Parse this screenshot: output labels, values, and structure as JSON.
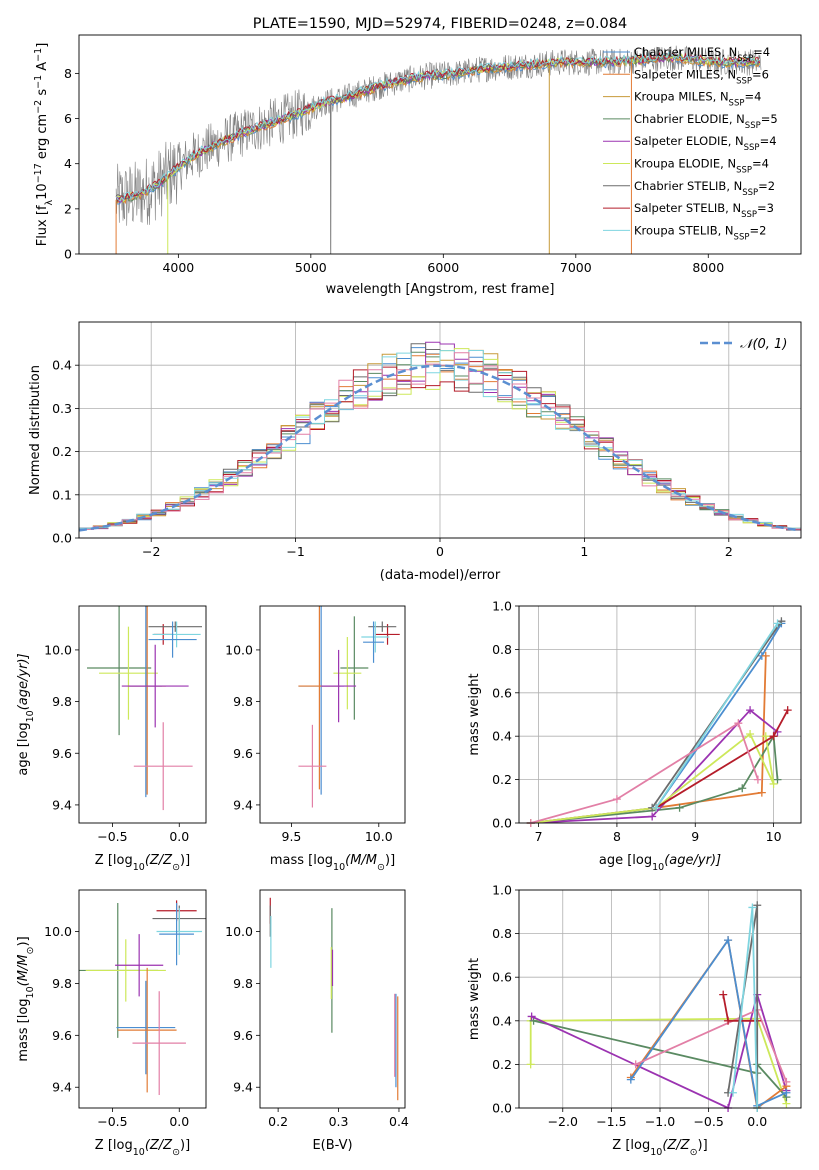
{
  "colors": {
    "chabrier_miles": "#4c8ed0",
    "salpeter_miles": "#e27b35",
    "kroupa_miles": "#c79a3a",
    "chabrier_elodie": "#5a8a62",
    "salpeter_elodie": "#9b33b1",
    "kroupa_elodie": "#cde85a",
    "chabrier_stelib": "#6b6b6b",
    "salpeter_stelib": "#b51d2a",
    "kroupa_stelib": "#7fd5e0",
    "pink": "#e27fa6",
    "gaussian": "#5b8fd1",
    "data": "#7f7f7f",
    "grid": "#b0b0b0"
  },
  "chart_data": [
    {
      "id": "spectrum",
      "type": "line",
      "title": "PLATE=1590, MJD=52974, FIBERID=0248, z=0.084",
      "xlabel": "wavelength [Angstrom, rest frame]",
      "ylabel_main": "Flux [f",
      "ylabel_sub": "λ",
      "ylabel_rest": "10",
      "ylabel_exp1": "−17",
      "ylabel_mid": " erg cm",
      "ylabel_exp2": "−2",
      "ylabel_s": " s",
      "ylabel_exp3": "−1",
      "ylabel_a": " A",
      "ylabel_exp4": "−1",
      "ylabel_end": "]",
      "xlim": [
        3250,
        8700
      ],
      "ylim": [
        0,
        9.7
      ],
      "xticks": [
        "4000",
        "5000",
        "6000",
        "7000",
        "8000"
      ],
      "xtick_values": [
        4000,
        5000,
        6000,
        7000,
        8000
      ],
      "yticks": [
        "0",
        "2",
        "4",
        "6",
        "8"
      ],
      "ytick_values": [
        0,
        2,
        4,
        6,
        8
      ],
      "grid": false,
      "legend_location": "right",
      "legend": [
        {
          "label": "Chabrier MILES, N",
          "sub": "SSP",
          "tail": "=4",
          "color_key": "chabrier_miles"
        },
        {
          "label": "Salpeter MILES, N",
          "sub": "SSP",
          "tail": "=6",
          "color_key": "salpeter_miles"
        },
        {
          "label": "Kroupa MILES, N",
          "sub": "SSP",
          "tail": "=4",
          "color_key": "kroupa_miles"
        },
        {
          "label": "Chabrier ELODIE, N",
          "sub": "SSP",
          "tail": "=5",
          "color_key": "chabrier_elodie"
        },
        {
          "label": "Salpeter ELODIE, N",
          "sub": "SSP",
          "tail": "=4",
          "color_key": "salpeter_elodie"
        },
        {
          "label": "Kroupa ELODIE, N",
          "sub": "SSP",
          "tail": "=4",
          "color_key": "kroupa_elodie"
        },
        {
          "label": "Chabrier STELIB, N",
          "sub": "SSP",
          "tail": "=2",
          "color_key": "chabrier_stelib"
        },
        {
          "label": "Salpeter STELIB, N",
          "sub": "SSP",
          "tail": "=3",
          "color_key": "salpeter_stelib"
        },
        {
          "label": "Kroupa STELIB, N",
          "sub": "SSP",
          "tail": "=2",
          "color_key": "kroupa_stelib"
        }
      ],
      "continuum": [
        [
          3530,
          2.4
        ],
        [
          3700,
          2.6
        ],
        [
          3850,
          3.1
        ],
        [
          3950,
          3.6
        ],
        [
          4100,
          4.3
        ],
        [
          4300,
          4.9
        ],
        [
          4500,
          5.4
        ],
        [
          4700,
          5.8
        ],
        [
          4900,
          6.2
        ],
        [
          5100,
          6.7
        ],
        [
          5300,
          7.0
        ],
        [
          5500,
          7.4
        ],
        [
          5700,
          7.7
        ],
        [
          5900,
          7.9
        ],
        [
          6100,
          8.0
        ],
        [
          6300,
          8.2
        ],
        [
          6500,
          8.3
        ],
        [
          6700,
          8.4
        ],
        [
          6900,
          8.5
        ],
        [
          7100,
          8.5
        ],
        [
          7300,
          8.5
        ],
        [
          7500,
          8.6
        ],
        [
          7700,
          8.7
        ],
        [
          7900,
          8.6
        ],
        [
          8100,
          8.5
        ],
        [
          8300,
          8.5
        ]
      ],
      "data_range": [
        3530,
        8400
      ],
      "dropouts": [
        [
          3530,
          "salpeter_miles"
        ],
        [
          3920,
          "kroupa_elodie"
        ],
        [
          5150,
          "data"
        ],
        [
          6800,
          "kroupa_miles"
        ],
        [
          7420,
          "salpeter_miles"
        ]
      ]
    },
    {
      "id": "residuals",
      "type": "bar",
      "xlabel": "(data-model)/error",
      "ylabel": "Normed distribution",
      "xlim": [
        -2.5,
        2.5
      ],
      "ylim": [
        0,
        0.5
      ],
      "xticks": [
        "−2",
        "−1",
        "0",
        "1",
        "2"
      ],
      "xtick_values": [
        -2,
        -1,
        0,
        1,
        2
      ],
      "yticks": [
        "0.0",
        "0.1",
        "0.2",
        "0.3",
        "0.4"
      ],
      "ytick_values": [
        0,
        0.1,
        0.2,
        0.3,
        0.4
      ],
      "grid": true,
      "bin_width": 0.1,
      "legend_location": "upper right",
      "legend_label": "𝒩(0, 1)",
      "gaussian_sigma": 1.0
    },
    {
      "id": "z_vs_age",
      "type": "scatter",
      "xlabel": "Z [log",
      "xlabel_sub": "10",
      "xlabel_rest": "(Z/Z",
      "xlabel_sun": "⊙",
      "xlabel_end": ")]",
      "ylabel": "age  [log",
      "ylabel_sub": "10",
      "ylabel_rest": "(age/yr)]",
      "xlim": [
        -0.75,
        0.2
      ],
      "ylim": [
        9.33,
        10.17
      ],
      "xticks": [
        "−0.5",
        "0.0"
      ],
      "xtick_values": [
        -0.5,
        0.0
      ],
      "yticks": [
        "9.4",
        "9.6",
        "9.8",
        "10.0"
      ],
      "ytick_values": [
        9.4,
        9.6,
        9.8,
        10.0
      ],
      "points": [
        {
          "x": -0.12,
          "y": 10.06,
          "xerr": 0.07,
          "yerr": 0.04,
          "c": "salpeter_stelib"
        },
        {
          "x": -0.03,
          "y": 10.09,
          "xerr": 0.2,
          "yerr": 0.02,
          "c": "chabrier_stelib"
        },
        {
          "x": -0.02,
          "y": 10.06,
          "xerr": 0.18,
          "yerr": 0.05,
          "c": "kroupa_stelib"
        },
        {
          "x": -0.05,
          "y": 10.04,
          "xerr": 0.18,
          "yerr": 0.07,
          "c": "chabrier_miles"
        },
        {
          "x": -0.45,
          "y": 9.93,
          "xerr": 0.24,
          "yerr": 0.26,
          "c": "chabrier_elodie"
        },
        {
          "x": -0.38,
          "y": 9.91,
          "xerr": 0.22,
          "yerr": 0.18,
          "c": "kroupa_elodie"
        },
        {
          "x": -0.25,
          "y": 9.86,
          "xerr": 0.12,
          "yerr": 0.43,
          "c": "chabrier_miles"
        },
        {
          "x": -0.24,
          "y": 9.86,
          "xerr": 0.14,
          "yerr": 0.42,
          "c": "salpeter_miles"
        },
        {
          "x": -0.18,
          "y": 9.86,
          "xerr": 0.25,
          "yerr": 0.16,
          "c": "salpeter_elodie"
        },
        {
          "x": -0.12,
          "y": 9.55,
          "xerr": 0.22,
          "yerr": 0.17,
          "c": "pink"
        }
      ]
    },
    {
      "id": "mass_vs_age",
      "type": "scatter",
      "xlabel": "mass [log",
      "xlabel_sub": "10",
      "xlabel_rest": "(M/M",
      "xlabel_sun": "⊙",
      "xlabel_end": ")]",
      "xlim": [
        9.32,
        10.15
      ],
      "ylim": [
        9.33,
        10.17
      ],
      "xticks": [
        "9.5",
        "10.0"
      ],
      "xtick_values": [
        9.5,
        10.0
      ],
      "yticks": [
        "9.4",
        "9.6",
        "9.8",
        "10.0"
      ],
      "ytick_values": [
        9.4,
        9.6,
        9.8,
        10.0
      ],
      "points": [
        {
          "x": 10.05,
          "y": 10.06,
          "xerr": 0.07,
          "yerr": 0.04,
          "c": "salpeter_stelib"
        },
        {
          "x": 10.02,
          "y": 10.09,
          "xerr": 0.08,
          "yerr": 0.02,
          "c": "chabrier_stelib"
        },
        {
          "x": 9.98,
          "y": 10.05,
          "xerr": 0.08,
          "yerr": 0.06,
          "c": "kroupa_stelib"
        },
        {
          "x": 9.97,
          "y": 10.03,
          "xerr": 0.06,
          "yerr": 0.08,
          "c": "chabrier_miles"
        },
        {
          "x": 9.86,
          "y": 9.93,
          "xerr": 0.08,
          "yerr": 0.2,
          "c": "chabrier_elodie"
        },
        {
          "x": 9.82,
          "y": 9.91,
          "xerr": 0.08,
          "yerr": 0.14,
          "c": "kroupa_elodie"
        },
        {
          "x": 9.67,
          "y": 9.86,
          "xerr": 0.13,
          "yerr": 0.42,
          "c": "chabrier_miles"
        },
        {
          "x": 9.66,
          "y": 9.86,
          "xerr": 0.12,
          "yerr": 0.4,
          "c": "salpeter_miles"
        },
        {
          "x": 9.77,
          "y": 9.86,
          "xerr": 0.1,
          "yerr": 0.14,
          "c": "salpeter_elodie"
        },
        {
          "x": 9.62,
          "y": 9.55,
          "xerr": 0.08,
          "yerr": 0.16,
          "c": "pink"
        }
      ]
    },
    {
      "id": "weight_vs_age",
      "type": "line",
      "xlabel": "age  [log",
      "xlabel_sub": "10",
      "xlabel_rest": "(age/yr)]",
      "ylabel": "mass weight",
      "xlim": [
        6.75,
        10.35
      ],
      "ylim": [
        0,
        1
      ],
      "xticks": [
        "7",
        "8",
        "9",
        "10"
      ],
      "xtick_values": [
        7,
        8,
        9,
        10
      ],
      "yticks": [
        "0.0",
        "0.2",
        "0.4",
        "0.6",
        "0.8",
        "1.0"
      ],
      "ytick_values": [
        0,
        0.2,
        0.4,
        0.6,
        0.8,
        1.0
      ],
      "grid": true,
      "series": [
        {
          "c": "chabrier_miles",
          "x": [
            6.9,
            8.5,
            9.85,
            10.1
          ],
          "y": [
            0.0,
            0.07,
            0.77,
            0.92
          ]
        },
        {
          "c": "salpeter_miles",
          "x": [
            6.9,
            8.5,
            9.85,
            9.9
          ],
          "y": [
            0.0,
            0.07,
            0.14,
            0.77
          ]
        },
        {
          "c": "chabrier_elodie",
          "x": [
            6.9,
            8.8,
            9.6,
            10.0,
            10.05
          ],
          "y": [
            0.0,
            0.07,
            0.16,
            0.4,
            0.2
          ]
        },
        {
          "c": "salpeter_elodie",
          "x": [
            6.9,
            8.45,
            9.7,
            10.05
          ],
          "y": [
            0.0,
            0.03,
            0.52,
            0.42
          ]
        },
        {
          "c": "kroupa_elodie",
          "x": [
            6.9,
            8.5,
            9.7,
            10.0,
            9.9
          ],
          "y": [
            0.0,
            0.07,
            0.41,
            0.18,
            0.4
          ]
        },
        {
          "c": "chabrier_stelib",
          "x": [
            8.45,
            10.1
          ],
          "y": [
            0.07,
            0.93
          ]
        },
        {
          "c": "salpeter_stelib",
          "x": [
            8.5,
            10.0,
            10.18
          ],
          "y": [
            0.07,
            0.4,
            0.52
          ]
        },
        {
          "c": "kroupa_stelib",
          "x": [
            8.5,
            10.05
          ],
          "y": [
            0.07,
            0.92
          ]
        },
        {
          "c": "pink",
          "x": [
            6.9,
            8.0,
            9.55,
            9.8
          ],
          "y": [
            0.0,
            0.11,
            0.46,
            0.2
          ]
        }
      ]
    },
    {
      "id": "z_vs_mass",
      "type": "scatter",
      "xlabel": "Z [log",
      "xlabel_sub": "10",
      "xlabel_rest": "(Z/Z",
      "xlabel_sun": "⊙",
      "xlabel_end": ")]",
      "ylabel": "mass [log",
      "ylabel_sub": "10",
      "ylabel_rest": "(M/M",
      "ylabel_sun": "⊙",
      "ylabel_end": ")]",
      "xlim": [
        -0.75,
        0.2
      ],
      "ylim": [
        9.32,
        10.16
      ],
      "xticks": [
        "−0.5",
        "0.0"
      ],
      "xtick_values": [
        -0.5,
        0.0
      ],
      "yticks": [
        "9.4",
        "9.6",
        "9.8",
        "10.0"
      ],
      "ytick_values": [
        9.4,
        9.6,
        9.8,
        10.0
      ],
      "points": [
        {
          "x": -0.02,
          "y": 10.08,
          "xerr": 0.15,
          "yerr": 0.04,
          "c": "salpeter_stelib"
        },
        {
          "x": 0.0,
          "y": 10.05,
          "xerr": 0.2,
          "yerr": 0.05,
          "c": "chabrier_stelib"
        },
        {
          "x": 0.0,
          "y": 10.0,
          "xerr": 0.17,
          "yerr": 0.09,
          "c": "kroupa_stelib"
        },
        {
          "x": -0.02,
          "y": 9.99,
          "xerr": 0.13,
          "yerr": 0.12,
          "c": "chabrier_miles"
        },
        {
          "x": -0.46,
          "y": 9.85,
          "xerr": 0.3,
          "yerr": 0.26,
          "c": "chabrier_elodie"
        },
        {
          "x": -0.4,
          "y": 9.85,
          "xerr": 0.3,
          "yerr": 0.12,
          "c": "kroupa_elodie"
        },
        {
          "x": -0.25,
          "y": 9.63,
          "xerr": 0.22,
          "yerr": 0.18,
          "c": "chabrier_miles"
        },
        {
          "x": -0.24,
          "y": 9.62,
          "xerr": 0.22,
          "yerr": 0.24,
          "c": "salpeter_miles"
        },
        {
          "x": -0.3,
          "y": 9.87,
          "xerr": 0.18,
          "yerr": 0.12,
          "c": "salpeter_elodie"
        },
        {
          "x": -0.15,
          "y": 9.57,
          "xerr": 0.2,
          "yerr": 0.2,
          "c": "pink"
        }
      ]
    },
    {
      "id": "ebv_vs_mass",
      "type": "scatter",
      "xlabel": "E(B-V)",
      "xlim": [
        0.17,
        0.41
      ],
      "ylim": [
        9.32,
        10.16
      ],
      "xticks": [
        "0.2",
        "0.3",
        "0.4"
      ],
      "xtick_values": [
        0.2,
        0.3,
        0.4
      ],
      "yticks": [
        "9.4",
        "9.6",
        "9.8",
        "10.0"
      ],
      "ytick_values": [
        9.4,
        9.6,
        9.8,
        10.0
      ],
      "points": [
        {
          "x": 0.187,
          "y": 10.08,
          "yerr": 0.05,
          "c": "salpeter_stelib"
        },
        {
          "x": 0.187,
          "y": 10.04,
          "yerr": 0.06,
          "c": "chabrier_stelib"
        },
        {
          "x": 0.188,
          "y": 9.96,
          "yerr": 0.1,
          "c": "kroupa_stelib"
        },
        {
          "x": 0.289,
          "y": 9.85,
          "yerr": 0.24,
          "c": "chabrier_elodie"
        },
        {
          "x": 0.288,
          "y": 9.84,
          "yerr": 0.1,
          "c": "kroupa_elodie"
        },
        {
          "x": 0.29,
          "y": 9.86,
          "yerr": 0.07,
          "c": "salpeter_elodie"
        },
        {
          "x": 0.393,
          "y": 9.6,
          "yerr": 0.16,
          "c": "pink"
        },
        {
          "x": 0.398,
          "y": 9.55,
          "yerr": 0.2,
          "c": "salpeter_miles"
        },
        {
          "x": 0.395,
          "y": 9.58,
          "yerr": 0.18,
          "c": "chabrier_miles"
        }
      ]
    },
    {
      "id": "weight_vs_z",
      "type": "line",
      "xlabel": "Z [log",
      "xlabel_sub": "10",
      "xlabel_rest": "(Z/Z",
      "xlabel_sun": "⊙",
      "xlabel_end": ")]",
      "ylabel": "mass weight",
      "xlim": [
        -2.45,
        0.45
      ],
      "ylim": [
        0,
        1
      ],
      "xticks": [
        "−2.0",
        "−1.5",
        "−1.0",
        "−0.5",
        "0.0"
      ],
      "xtick_values": [
        -2.0,
        -1.5,
        -1.0,
        -0.5,
        0.0
      ],
      "yticks": [
        "0.0",
        "0.2",
        "0.4",
        "0.6",
        "0.8",
        "1.0"
      ],
      "ytick_values": [
        0,
        0.2,
        0.4,
        0.6,
        0.8,
        1.0
      ],
      "grid": true,
      "series": [
        {
          "c": "kroupa_elodie",
          "x": [
            -2.33,
            -2.33,
            0.0,
            0.3
          ],
          "y": [
            0.2,
            0.4,
            0.41,
            0.02
          ]
        },
        {
          "c": "chabrier_elodie",
          "x": [
            -2.3,
            0.0,
            0.0,
            0.3
          ],
          "y": [
            0.4,
            0.16,
            0.2,
            0.05
          ]
        },
        {
          "c": "salpeter_elodie",
          "x": [
            -2.32,
            -0.3,
            0.0,
            0.3
          ],
          "y": [
            0.42,
            0.0,
            0.52,
            0.08
          ]
        },
        {
          "c": "salpeter_miles",
          "x": [
            -1.3,
            -0.3,
            0.0,
            0.3
          ],
          "y": [
            0.14,
            0.77,
            0.0,
            0.1
          ]
        },
        {
          "c": "chabrier_miles",
          "x": [
            -1.3,
            -0.3,
            0.0,
            0.3
          ],
          "y": [
            0.13,
            0.77,
            0.01,
            0.07
          ]
        },
        {
          "c": "pink",
          "x": [
            -1.25,
            0.0,
            0.3
          ],
          "y": [
            0.2,
            0.45,
            0.12
          ]
        },
        {
          "c": "salpeter_stelib",
          "x": [
            -0.35,
            -0.3,
            0.0
          ],
          "y": [
            0.52,
            0.4,
            0.4
          ]
        },
        {
          "c": "chabrier_stelib",
          "x": [
            -0.3,
            0.0,
            0.0
          ],
          "y": [
            0.07,
            0.93,
            0.0
          ]
        },
        {
          "c": "kroupa_stelib",
          "x": [
            -0.25,
            -0.05,
            0.0
          ],
          "y": [
            0.07,
            0.92,
            0.0
          ]
        }
      ]
    }
  ]
}
